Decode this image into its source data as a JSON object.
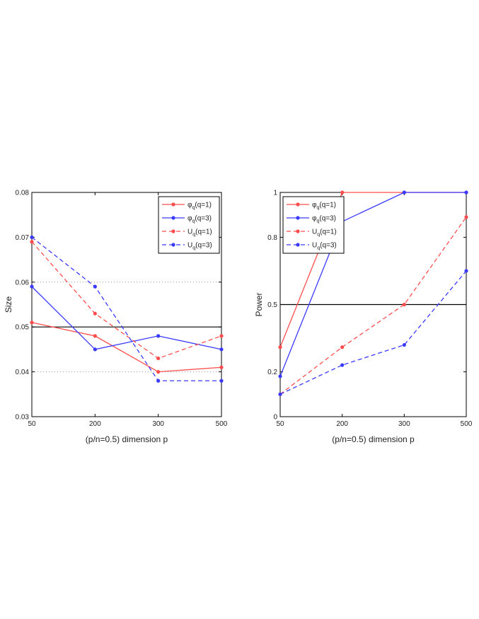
{
  "chart_data": [
    {
      "type": "line",
      "ylabel": "Size",
      "xlabel": "(p/n=0.5) dimension p",
      "x": [
        50,
        200,
        300,
        500
      ],
      "x_ticks": [
        "50",
        "200",
        "300",
        "500"
      ],
      "y_ticks": [
        "0.03",
        "0.04",
        "0.05",
        "0.06",
        "0.07",
        "0.08"
      ],
      "y_tick_values": [
        0.03,
        0.04,
        0.05,
        0.06,
        0.07,
        0.08
      ],
      "ylim": [
        0.03,
        0.08
      ],
      "reference_line": 0.05,
      "dotted_gridlines": [
        0.04,
        0.06
      ],
      "legend_placement": "top-right",
      "series": [
        {
          "name_main": "φ",
          "name_sub": "q",
          "name_rest": "(q=1)",
          "color": "#ff4d4d",
          "style": "solid",
          "values": [
            0.051,
            0.048,
            0.04,
            0.041
          ]
        },
        {
          "name_main": "φ",
          "name_sub": "q",
          "name_rest": "(q=3)",
          "color": "#3a3aff",
          "style": "solid",
          "values": [
            0.059,
            0.045,
            0.048,
            0.045
          ]
        },
        {
          "name_main": "U",
          "name_sub": "q",
          "name_rest": "(q=1)",
          "color": "#ff4d4d",
          "style": "dashed",
          "values": [
            0.069,
            0.053,
            0.043,
            0.048
          ]
        },
        {
          "name_main": "U",
          "name_sub": "q",
          "name_rest": "(q=3)",
          "color": "#3a3aff",
          "style": "dashed",
          "values": [
            0.07,
            0.059,
            0.038,
            0.038
          ]
        }
      ]
    },
    {
      "type": "line",
      "ylabel": "Power",
      "xlabel": "(p/n=0.5) dimension p",
      "x": [
        50,
        200,
        300,
        500
      ],
      "x_ticks": [
        "50",
        "200",
        "300",
        "500"
      ],
      "y_ticks": [
        "0",
        "0.2",
        "0.5",
        "0.8",
        "1"
      ],
      "y_tick_values": [
        0,
        0.2,
        0.5,
        0.8,
        1.0
      ],
      "ylim": [
        0,
        1
      ],
      "reference_line": 0.5,
      "legend_placement": "top-left",
      "series": [
        {
          "name_main": "φ",
          "name_sub": "q",
          "name_rest": "(q=1)",
          "color": "#ff4d4d",
          "style": "solid",
          "values": [
            0.31,
            1.0,
            1.0,
            1.0
          ]
        },
        {
          "name_main": "φ",
          "name_sub": "q",
          "name_rest": "(q=3)",
          "color": "#3a3aff",
          "style": "solid",
          "values": [
            0.18,
            0.87,
            1.0,
            1.0
          ]
        },
        {
          "name_main": "U",
          "name_sub": "q",
          "name_rest": "(q=1)",
          "color": "#ff4d4d",
          "style": "dashed",
          "values": [
            0.1,
            0.31,
            0.5,
            0.89
          ]
        },
        {
          "name_main": "U",
          "name_sub": "q",
          "name_rest": "(q=3)",
          "color": "#3a3aff",
          "style": "dashed",
          "values": [
            0.1,
            0.23,
            0.32,
            0.65
          ]
        }
      ]
    }
  ]
}
